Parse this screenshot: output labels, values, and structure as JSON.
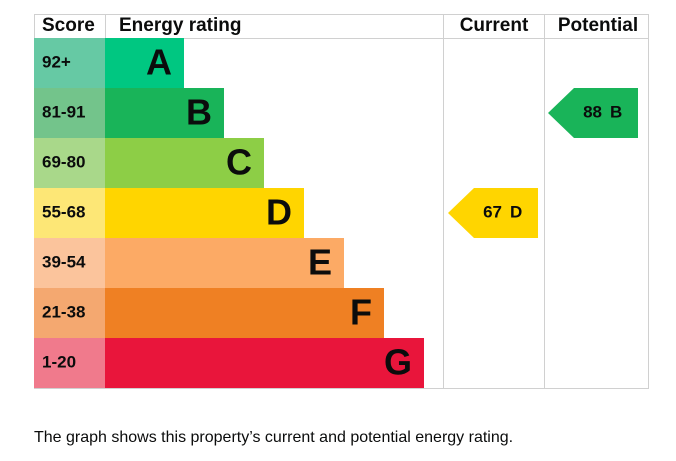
{
  "header": {
    "score": "Score",
    "rating": "Energy rating",
    "current": "Current",
    "potential": "Potential"
  },
  "bands": [
    {
      "score": "92+",
      "letter": "A"
    },
    {
      "score": "81-91",
      "letter": "B"
    },
    {
      "score": "69-80",
      "letter": "C"
    },
    {
      "score": "55-68",
      "letter": "D"
    },
    {
      "score": "39-54",
      "letter": "E"
    },
    {
      "score": "21-38",
      "letter": "F"
    },
    {
      "score": "1-20",
      "letter": "G"
    }
  ],
  "current": {
    "value": 67,
    "letter": "D"
  },
  "potential": {
    "value": 88,
    "letter": "B"
  },
  "caption": "The graph shows this property’s current and potential energy rating."
}
